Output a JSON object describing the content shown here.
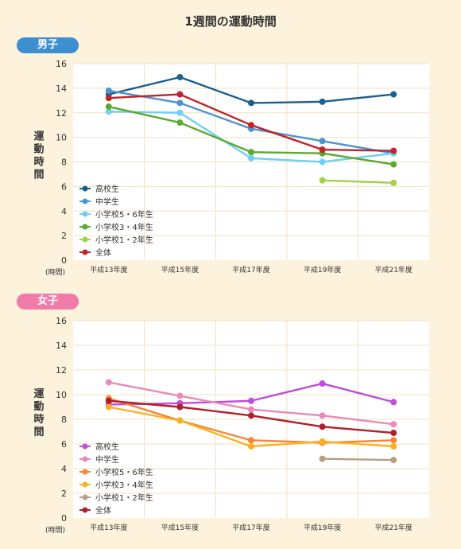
{
  "page_title": "1週間の運動時間",
  "colors": {
    "background": "#fdf3dc",
    "plot_bg": "#ffffff",
    "boys_badge": "#3d8fd1",
    "girls_badge": "#f07aa8"
  },
  "chart_data": [
    {
      "type": "line",
      "badge": "男子",
      "ylabel": "運動時間",
      "y_unit": "(時間)",
      "ylim": [
        0,
        16
      ],
      "yticks": [
        0,
        2,
        4,
        6,
        8,
        10,
        12,
        14,
        16
      ],
      "categories": [
        "平成13年度",
        "平成15年度",
        "平成17年度",
        "平成19年度",
        "平成21年度"
      ],
      "grid": true,
      "legend_position": "bottom-left",
      "series": [
        {
          "name": "高校生",
          "color": "#1a5f8f",
          "values": [
            13.5,
            14.9,
            12.8,
            12.9,
            13.5
          ]
        },
        {
          "name": "中学生",
          "color": "#4a95cf",
          "values": [
            13.8,
            12.8,
            10.7,
            9.7,
            8.7
          ]
        },
        {
          "name": "小学校5・6年生",
          "color": "#6fd0f3",
          "values": [
            12.1,
            12.0,
            8.3,
            8.0,
            8.7
          ]
        },
        {
          "name": "小学校3・4年生",
          "color": "#5ba92f",
          "values": [
            12.5,
            11.2,
            8.8,
            8.7,
            7.8
          ]
        },
        {
          "name": "小学校1・2年生",
          "color": "#a2d24b",
          "values": [
            null,
            null,
            null,
            6.5,
            6.3
          ]
        },
        {
          "name": "全体",
          "color": "#c0242a",
          "values": [
            13.2,
            13.5,
            11.0,
            9.0,
            8.9
          ]
        }
      ]
    },
    {
      "type": "line",
      "badge": "女子",
      "ylabel": "運動時間",
      "y_unit": "(時間)",
      "ylim": [
        0,
        16
      ],
      "yticks": [
        0,
        2,
        4,
        6,
        8,
        10,
        12,
        14,
        16
      ],
      "categories": [
        "平成13年度",
        "平成15年度",
        "平成17年度",
        "平成19年度",
        "平成21年度"
      ],
      "grid": true,
      "legend_position": "bottom-left",
      "series": [
        {
          "name": "高校生",
          "color": "#c04cd8",
          "values": [
            9.2,
            9.3,
            9.5,
            10.9,
            9.4
          ]
        },
        {
          "name": "中学生",
          "color": "#e88ab8",
          "values": [
            11.0,
            9.9,
            8.8,
            8.3,
            7.6
          ]
        },
        {
          "name": "小学校5・6年生",
          "color": "#f4853a",
          "values": [
            9.7,
            7.9,
            6.3,
            6.1,
            6.3
          ]
        },
        {
          "name": "小学校3・4年生",
          "color": "#fbb11f",
          "values": [
            9.0,
            7.9,
            5.8,
            6.2,
            5.8
          ]
        },
        {
          "name": "小学校1・2年生",
          "color": "#b59f85",
          "values": [
            null,
            null,
            null,
            4.8,
            4.7
          ]
        },
        {
          "name": "全体",
          "color": "#b0202a",
          "values": [
            9.5,
            9.0,
            8.3,
            7.4,
            6.9
          ]
        }
      ]
    }
  ]
}
